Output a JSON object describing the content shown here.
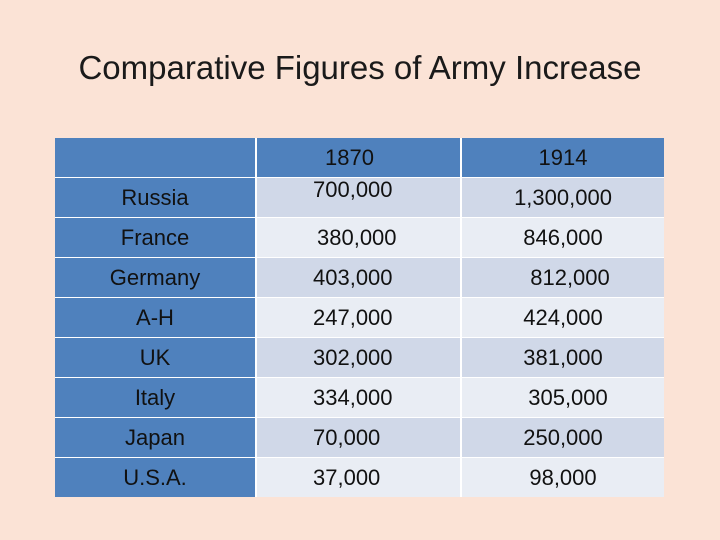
{
  "title": "Comparative Figures of Army Increase",
  "table": {
    "headers": [
      "",
      "1870",
      "1914"
    ],
    "rows": [
      {
        "country": "Russia",
        "y1870": "700,000",
        "y1914": "1,300,000"
      },
      {
        "country": "France",
        "y1870": "380,000",
        "y1914": "846,000"
      },
      {
        "country": "Germany",
        "y1870": "403,000",
        "y1914": "812,000"
      },
      {
        "country": "A-H",
        "y1870": "247,000",
        "y1914": "424,000"
      },
      {
        "country": "UK",
        "y1870": "302,000",
        "y1914": "381,000"
      },
      {
        "country": "Italy",
        "y1870": "334,000",
        "y1914": "305,000"
      },
      {
        "country": "Japan",
        "y1870": "70,000",
        "y1914": "250,000"
      },
      {
        "country": "U.S.A.",
        "y1870": "37,000",
        "y1914": "98,000"
      }
    ]
  },
  "colors": {
    "background": "#fbe3d6",
    "accent": "#4f81bd",
    "band_light": "#d0d8e8",
    "band_pale": "#e9edf4"
  }
}
